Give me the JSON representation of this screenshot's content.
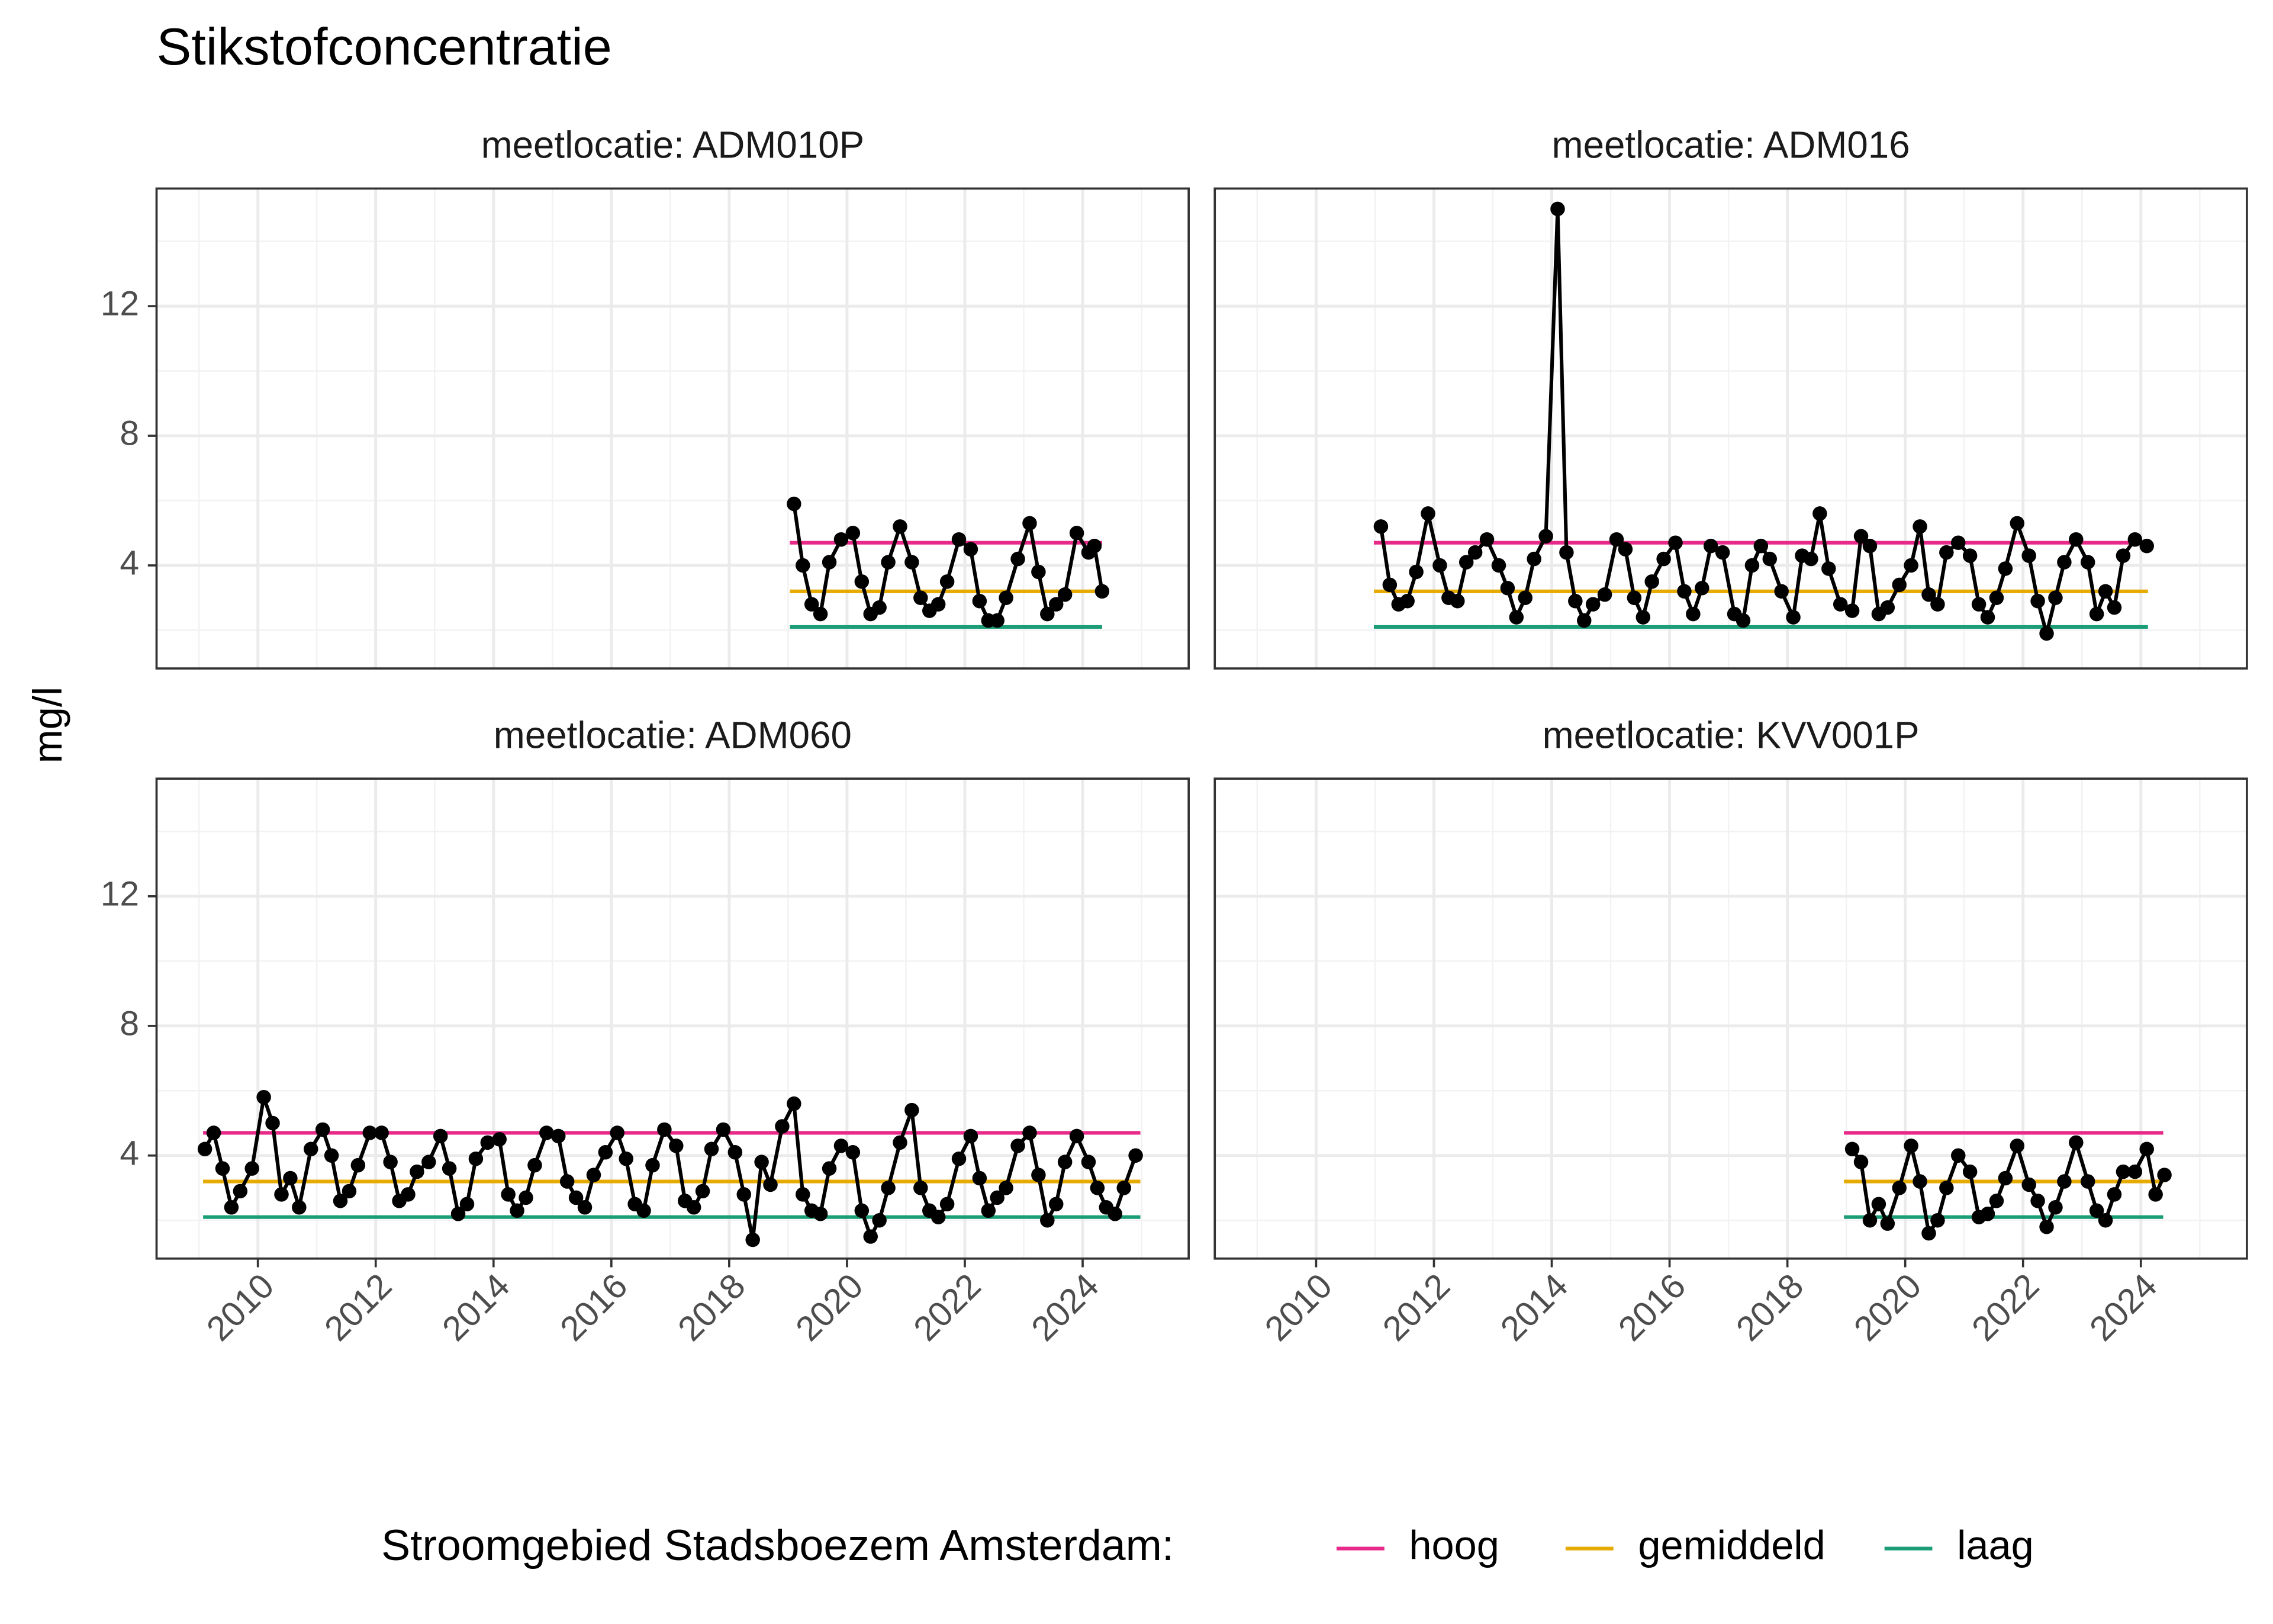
{
  "title": "Stikstofconcentratie",
  "ylabel": "mg/l",
  "legend_title": "Stroomgebied Stadsboezem Amsterdam:",
  "legend": [
    {
      "name": "hoog",
      "color": "#e7298a"
    },
    {
      "name": "gemiddeld",
      "color": "#e6ab02"
    },
    {
      "name": "laag",
      "color": "#1b9e77"
    }
  ],
  "chart_data": [
    {
      "type": "line",
      "facet": "meetlocatie: ADM010P",
      "color": "#000000",
      "xlim": [
        2008.28,
        2025.8
      ],
      "ylim": [
        0.82,
        15.63
      ],
      "xticks": [
        2010,
        2012,
        2014,
        2016,
        2018,
        2020,
        2022,
        2024
      ],
      "yticks": [
        4,
        8,
        12
      ],
      "xminor": [
        2009,
        2011,
        2013,
        2015,
        2017,
        2019,
        2021,
        2023,
        2025
      ],
      "yminor": [
        2,
        6,
        10,
        14
      ],
      "grid": true,
      "ref_range": [
        2019.03,
        2024.33
      ],
      "reference_values": [
        4.7,
        3.2,
        2.1
      ],
      "x": [
        2019.1,
        2019.25,
        2019.4,
        2019.55,
        2019.7,
        2019.9,
        2020.1,
        2020.25,
        2020.4,
        2020.55,
        2020.7,
        2020.9,
        2021.1,
        2021.25,
        2021.4,
        2021.55,
        2021.7,
        2021.9,
        2022.1,
        2022.25,
        2022.4,
        2022.55,
        2022.7,
        2022.9,
        2023.1,
        2023.25,
        2023.4,
        2023.55,
        2023.7,
        2023.9,
        2024.1,
        2024.2,
        2024.33
      ],
      "values": [
        5.9,
        4.0,
        2.8,
        2.5,
        4.1,
        4.8,
        5.0,
        3.5,
        2.5,
        2.7,
        4.1,
        5.2,
        4.1,
        3.0,
        2.6,
        2.8,
        3.5,
        4.8,
        4.5,
        2.9,
        2.3,
        2.3,
        3.0,
        4.2,
        5.3,
        3.8,
        2.5,
        2.8,
        3.1,
        5.0,
        4.4,
        4.6,
        3.2
      ]
    },
    {
      "type": "line",
      "facet": "meetlocatie: ADM016",
      "color": "#000000",
      "xlim": [
        2008.28,
        2025.8
      ],
      "ylim": [
        0.82,
        15.63
      ],
      "xticks": [
        2010,
        2012,
        2014,
        2016,
        2018,
        2020,
        2022,
        2024
      ],
      "yticks": [
        4,
        8,
        12
      ],
      "xminor": [
        2009,
        2011,
        2013,
        2015,
        2017,
        2019,
        2021,
        2023,
        2025
      ],
      "yminor": [
        2,
        6,
        10,
        14
      ],
      "grid": true,
      "ref_range": [
        2010.98,
        2024.12
      ],
      "reference_values": [
        4.7,
        3.2,
        2.1
      ],
      "x": [
        2011.1,
        2011.25,
        2011.4,
        2011.55,
        2011.7,
        2011.9,
        2012.1,
        2012.25,
        2012.4,
        2012.55,
        2012.7,
        2012.9,
        2013.1,
        2013.25,
        2013.4,
        2013.55,
        2013.7,
        2013.9,
        2014.1,
        2014.25,
        2014.4,
        2014.55,
        2014.7,
        2014.9,
        2015.1,
        2015.25,
        2015.4,
        2015.55,
        2015.7,
        2015.9,
        2016.1,
        2016.25,
        2016.4,
        2016.55,
        2016.7,
        2016.9,
        2017.1,
        2017.25,
        2017.4,
        2017.55,
        2017.7,
        2017.9,
        2018.1,
        2018.25,
        2018.4,
        2018.55,
        2018.7,
        2018.9,
        2019.1,
        2019.25,
        2019.4,
        2019.55,
        2019.7,
        2019.9,
        2020.1,
        2020.25,
        2020.4,
        2020.55,
        2020.7,
        2020.9,
        2021.1,
        2021.25,
        2021.4,
        2021.55,
        2021.7,
        2021.9,
        2022.1,
        2022.25,
        2022.4,
        2022.55,
        2022.7,
        2022.9,
        2023.1,
        2023.25,
        2023.4,
        2023.55,
        2023.7,
        2023.9,
        2024.1
      ],
      "values": [
        5.2,
        3.4,
        2.8,
        2.9,
        3.8,
        5.6,
        4.0,
        3.0,
        2.9,
        4.1,
        4.4,
        4.8,
        4.0,
        3.3,
        2.4,
        3.0,
        4.2,
        4.9,
        15.0,
        4.4,
        2.9,
        2.3,
        2.8,
        3.1,
        4.8,
        4.5,
        3.0,
        2.4,
        3.5,
        4.2,
        4.7,
        3.2,
        2.5,
        3.3,
        4.6,
        4.4,
        2.5,
        2.3,
        4.0,
        4.6,
        4.2,
        3.2,
        2.4,
        4.3,
        4.2,
        5.6,
        3.9,
        2.8,
        2.6,
        4.9,
        4.6,
        2.5,
        2.7,
        3.4,
        4.0,
        5.2,
        3.1,
        2.8,
        4.4,
        4.7,
        4.3,
        2.8,
        2.4,
        3.0,
        3.9,
        5.3,
        4.3,
        2.9,
        1.9,
        3.0,
        4.1,
        4.8,
        4.1,
        2.5,
        3.2,
        2.7,
        4.3,
        4.8,
        4.6
      ]
    },
    {
      "type": "line",
      "facet": "meetlocatie: ADM060",
      "color": "#000000",
      "xlim": [
        2008.28,
        2025.8
      ],
      "ylim": [
        0.82,
        15.63
      ],
      "xticks": [
        2010,
        2012,
        2014,
        2016,
        2018,
        2020,
        2022,
        2024
      ],
      "yticks": [
        4,
        8,
        12
      ],
      "xminor": [
        2009,
        2011,
        2013,
        2015,
        2017,
        2019,
        2021,
        2023,
        2025
      ],
      "yminor": [
        2,
        6,
        10,
        14
      ],
      "grid": true,
      "ref_range": [
        2009.07,
        2024.98
      ],
      "reference_values": [
        4.7,
        3.2,
        2.1
      ],
      "x": [
        2009.1,
        2009.25,
        2009.4,
        2009.55,
        2009.7,
        2009.9,
        2010.1,
        2010.25,
        2010.4,
        2010.55,
        2010.7,
        2010.9,
        2011.1,
        2011.25,
        2011.4,
        2011.55,
        2011.7,
        2011.9,
        2012.1,
        2012.25,
        2012.4,
        2012.55,
        2012.7,
        2012.9,
        2013.1,
        2013.25,
        2013.4,
        2013.55,
        2013.7,
        2013.9,
        2014.1,
        2014.25,
        2014.4,
        2014.55,
        2014.7,
        2014.9,
        2015.1,
        2015.25,
        2015.4,
        2015.55,
        2015.7,
        2015.9,
        2016.1,
        2016.25,
        2016.4,
        2016.55,
        2016.7,
        2016.9,
        2017.1,
        2017.25,
        2017.4,
        2017.55,
        2017.7,
        2017.9,
        2018.1,
        2018.25,
        2018.4,
        2018.55,
        2018.7,
        2018.9,
        2019.1,
        2019.25,
        2019.4,
        2019.55,
        2019.7,
        2019.9,
        2020.1,
        2020.25,
        2020.4,
        2020.55,
        2020.7,
        2020.9,
        2021.1,
        2021.25,
        2021.4,
        2021.55,
        2021.7,
        2021.9,
        2022.1,
        2022.25,
        2022.4,
        2022.55,
        2022.7,
        2022.9,
        2023.1,
        2023.25,
        2023.4,
        2023.55,
        2023.7,
        2023.9,
        2024.1,
        2024.25,
        2024.4,
        2024.55,
        2024.7,
        2024.9
      ],
      "values": [
        4.2,
        4.7,
        3.6,
        2.4,
        2.9,
        3.6,
        5.8,
        5.0,
        2.8,
        3.3,
        2.4,
        4.2,
        4.8,
        4.0,
        2.6,
        2.9,
        3.7,
        4.7,
        4.7,
        3.8,
        2.6,
        2.8,
        3.5,
        3.8,
        4.6,
        3.6,
        2.2,
        2.5,
        3.9,
        4.4,
        4.5,
        2.8,
        2.3,
        2.7,
        3.7,
        4.7,
        4.6,
        3.2,
        2.7,
        2.4,
        3.4,
        4.1,
        4.7,
        3.9,
        2.5,
        2.3,
        3.7,
        4.8,
        4.3,
        2.6,
        2.4,
        2.9,
        4.2,
        4.8,
        4.1,
        2.8,
        1.4,
        3.8,
        3.1,
        4.9,
        5.6,
        2.8,
        2.3,
        2.2,
        3.6,
        4.3,
        4.1,
        2.3,
        1.5,
        2.0,
        3.0,
        4.4,
        5.4,
        3.0,
        2.3,
        2.1,
        2.5,
        3.9,
        4.6,
        3.3,
        2.3,
        2.7,
        3.0,
        4.3,
        4.7,
        3.4,
        2.0,
        2.5,
        3.8,
        4.6,
        3.8,
        3.0,
        2.4,
        2.2,
        3.0,
        4.0
      ]
    },
    {
      "type": "line",
      "facet": "meetlocatie: KVV001P",
      "color": "#000000",
      "xlim": [
        2008.28,
        2025.8
      ],
      "ylim": [
        0.82,
        15.63
      ],
      "xticks": [
        2010,
        2012,
        2014,
        2016,
        2018,
        2020,
        2022,
        2024
      ],
      "yticks": [
        4,
        8,
        12
      ],
      "xminor": [
        2009,
        2011,
        2013,
        2015,
        2017,
        2019,
        2021,
        2023,
        2025
      ],
      "yminor": [
        2,
        6,
        10,
        14
      ],
      "grid": true,
      "ref_range": [
        2018.96,
        2024.38
      ],
      "reference_values": [
        4.7,
        3.2,
        2.1
      ],
      "x": [
        2019.1,
        2019.25,
        2019.4,
        2019.55,
        2019.7,
        2019.9,
        2020.1,
        2020.25,
        2020.4,
        2020.55,
        2020.7,
        2020.9,
        2021.1,
        2021.25,
        2021.4,
        2021.55,
        2021.7,
        2021.9,
        2022.1,
        2022.25,
        2022.4,
        2022.55,
        2022.7,
        2022.9,
        2023.1,
        2023.25,
        2023.4,
        2023.55,
        2023.7,
        2023.9,
        2024.1,
        2024.25,
        2024.4
      ],
      "values": [
        4.2,
        3.8,
        2.0,
        2.5,
        1.9,
        3.0,
        4.3,
        3.2,
        1.6,
        2.0,
        3.0,
        4.0,
        3.5,
        2.1,
        2.2,
        2.6,
        3.3,
        4.3,
        3.1,
        2.6,
        1.8,
        2.4,
        3.2,
        4.4,
        3.2,
        2.3,
        2.0,
        2.8,
        3.5,
        3.5,
        4.2,
        2.8,
        3.4
      ]
    }
  ]
}
